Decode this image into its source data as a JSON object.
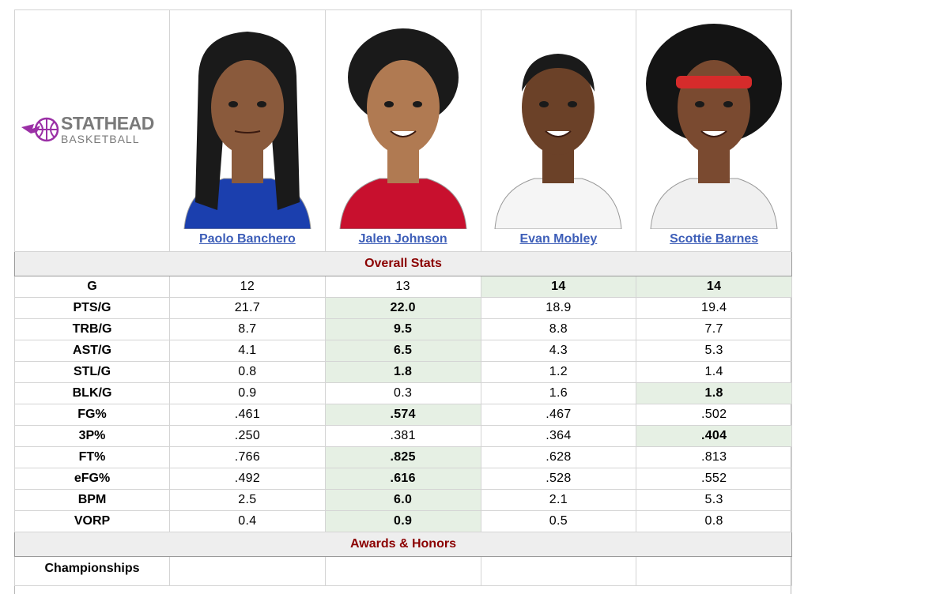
{
  "brand": {
    "name_top": "STATHEAD",
    "name_bottom": "BASKETBALL",
    "accent": "#9b30a6"
  },
  "players": [
    {
      "name": "Paolo Banchero",
      "jersey_color": "#1b3fae",
      "skin": "#8a5a3c"
    },
    {
      "name": "Jalen Johnson",
      "jersey_color": "#c8102e",
      "skin": "#b07a52"
    },
    {
      "name": "Evan Mobley",
      "jersey_color": "#f5f5f5",
      "skin": "#6b4128"
    },
    {
      "name": "Scottie Barnes",
      "jersey_color": "#f0f0f0",
      "skin": "#7a4a30"
    }
  ],
  "sections": {
    "overall": "Overall Stats",
    "awards": "Awards & Honors"
  },
  "stats": [
    {
      "label": "G",
      "values": [
        "12",
        "13",
        "14",
        "14"
      ],
      "best": [
        2,
        3
      ]
    },
    {
      "label": "PTS/G",
      "values": [
        "21.7",
        "22.0",
        "18.9",
        "19.4"
      ],
      "best": [
        1
      ]
    },
    {
      "label": "TRB/G",
      "values": [
        "8.7",
        "9.5",
        "8.8",
        "7.7"
      ],
      "best": [
        1
      ]
    },
    {
      "label": "AST/G",
      "values": [
        "4.1",
        "6.5",
        "4.3",
        "5.3"
      ],
      "best": [
        1
      ]
    },
    {
      "label": "STL/G",
      "values": [
        "0.8",
        "1.8",
        "1.2",
        "1.4"
      ],
      "best": [
        1
      ]
    },
    {
      "label": "BLK/G",
      "values": [
        "0.9",
        "0.3",
        "1.6",
        "1.8"
      ],
      "best": [
        3
      ]
    },
    {
      "label": "FG%",
      "values": [
        ".461",
        ".574",
        ".467",
        ".502"
      ],
      "best": [
        1
      ]
    },
    {
      "label": "3P%",
      "values": [
        ".250",
        ".381",
        ".364",
        ".404"
      ],
      "best": [
        3
      ]
    },
    {
      "label": "FT%",
      "values": [
        ".766",
        ".825",
        ".628",
        ".813"
      ],
      "best": [
        1
      ]
    },
    {
      "label": "eFG%",
      "values": [
        ".492",
        ".616",
        ".528",
        ".552"
      ],
      "best": [
        1
      ]
    },
    {
      "label": "BPM",
      "values": [
        "2.5",
        "6.0",
        "2.1",
        "5.3"
      ],
      "best": [
        1
      ]
    },
    {
      "label": "VORP",
      "values": [
        "0.4",
        "0.9",
        "0.5",
        "0.8"
      ],
      "best": [
        1
      ]
    }
  ],
  "awards": [
    {
      "label": "Championships",
      "values": [
        "",
        "",
        "",
        ""
      ]
    }
  ]
}
